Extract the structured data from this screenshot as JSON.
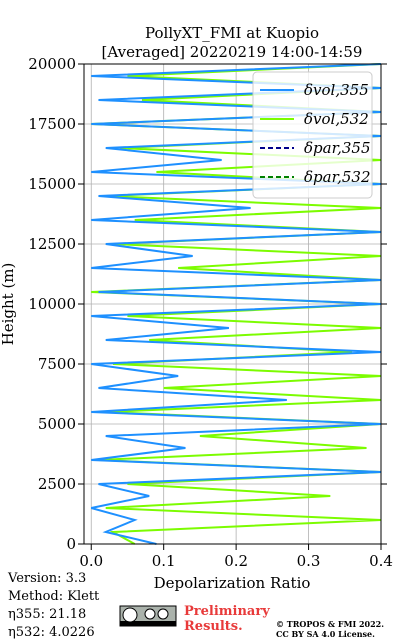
{
  "chart_data": {
    "type": "line",
    "title": "PollyXT_FMI at Kuopio",
    "subtitle": "[Averaged] 20220219 14:00-14:59",
    "x_label": "Depolarization Ratio",
    "y_label": "Height (m)",
    "xlim": [
      -0.01,
      0.4
    ],
    "xticks": [
      {
        "value": 0,
        "label": "0.0"
      },
      0.1,
      0.2,
      0.3,
      0.4
    ],
    "ylim": [
      0,
      20000
    ],
    "yticks": [
      0,
      2500,
      5000,
      7500,
      10000,
      12500,
      15000,
      17500,
      20000
    ],
    "grid": true,
    "legend": "upper right",
    "y": [
      0,
      500,
      1000,
      1500,
      2000,
      2500,
      3000,
      3500,
      4000,
      4500,
      5000,
      5500,
      6000,
      6500,
      7000,
      7500,
      8000,
      8500,
      9000,
      9500,
      10000,
      10500,
      11000,
      11500,
      12000,
      12500,
      13000,
      13500,
      14000,
      14500,
      15000,
      15500,
      16000,
      16500,
      17000,
      17500,
      18000,
      18500,
      19000,
      19500,
      20000
    ],
    "series": [
      {
        "name": "δvol,355",
        "color": "#1e90ff",
        "dash": false,
        "values": [
          0.09,
          0.02,
          0.06,
          0.0,
          0.08,
          0.01,
          0.4,
          0.0,
          0.13,
          0.02,
          0.4,
          0.0,
          0.27,
          0.01,
          0.12,
          0.0,
          0.4,
          0.02,
          0.19,
          0.0,
          0.4,
          0.01,
          0.4,
          0.0,
          0.14,
          0.02,
          0.4,
          0.0,
          0.22,
          0.01,
          0.4,
          0.0,
          0.18,
          0.02,
          0.4,
          0.0,
          0.4,
          0.01,
          0.4,
          0.0,
          0.4
        ]
      },
      {
        "name": "δvol,532",
        "color": "#7cfc00",
        "dash": false,
        "values": [
          0.06,
          0.03,
          0.4,
          0.02,
          0.33,
          0.05,
          0.4,
          0.01,
          0.38,
          0.15,
          0.4,
          0.02,
          0.4,
          0.1,
          0.4,
          0.03,
          0.36,
          0.08,
          0.4,
          0.05,
          0.4,
          0.0,
          0.4,
          0.12,
          0.4,
          0.03,
          0.4,
          0.06,
          0.4,
          0.02,
          0.4,
          0.09,
          0.4,
          0.04,
          0.4,
          0.0,
          0.4,
          0.07,
          0.4,
          0.05,
          0.4
        ]
      },
      {
        "name": "δpar,355",
        "color": "#00008b",
        "dash": true,
        "values": [
          null,
          null,
          null,
          null,
          null,
          null,
          null,
          null,
          null,
          null,
          null,
          null,
          null,
          null,
          null,
          null,
          null,
          null,
          null,
          null,
          null,
          null,
          null,
          null,
          null,
          null,
          null,
          null,
          null,
          null,
          null,
          null,
          null,
          null,
          null,
          null,
          null,
          null,
          null,
          null,
          null
        ]
      },
      {
        "name": "δpar,532",
        "color": "#008000",
        "dash": true,
        "values": [
          null,
          null,
          null,
          null,
          null,
          null,
          null,
          null,
          null,
          null,
          null,
          null,
          null,
          null,
          null,
          null,
          null,
          null,
          null,
          null,
          null,
          null,
          null,
          null,
          null,
          null,
          null,
          null,
          null,
          null,
          null,
          null,
          null,
          null,
          null,
          null,
          null,
          null,
          null,
          null,
          null
        ]
      }
    ],
    "info": [
      "Version: 3.3",
      "Method: Klett",
      "η355:  21.18",
      "η532: 4.0226"
    ],
    "notice": [
      "Preliminary",
      "Results."
    ],
    "copyright": [
      "© TROPOS & FMI 2022.",
      "CC BY SA 4.0 License."
    ]
  }
}
